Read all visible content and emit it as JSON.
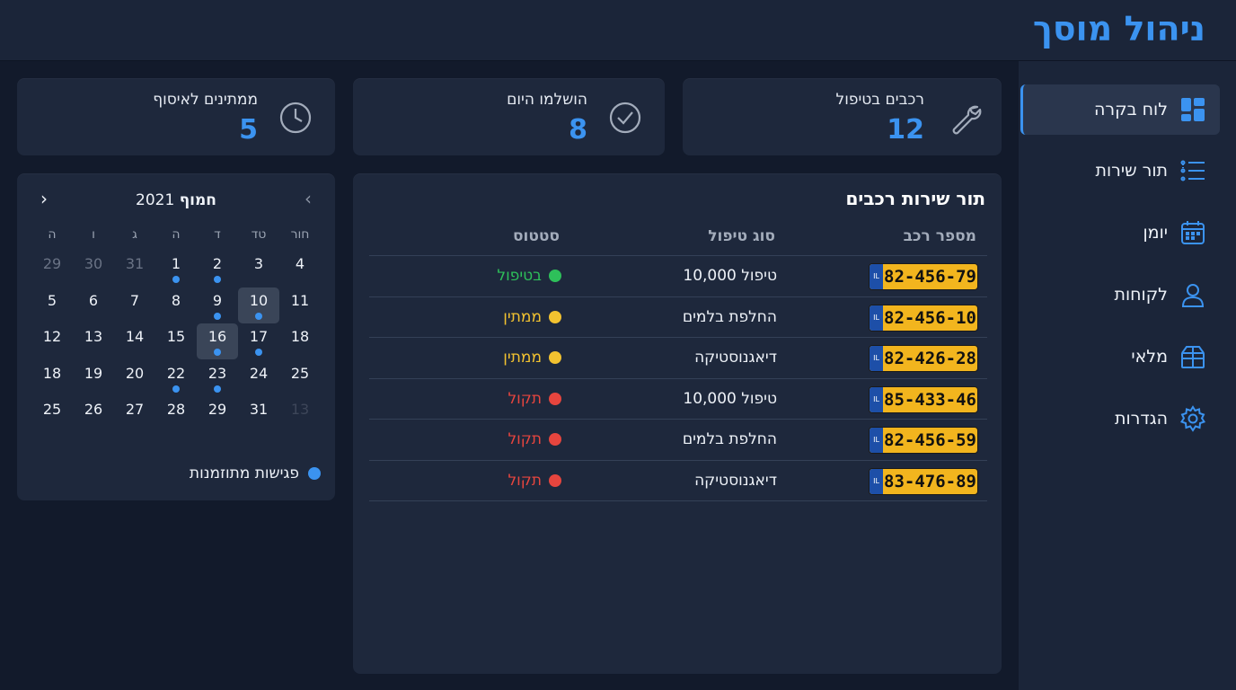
{
  "app": {
    "title": "ניהול מוסך"
  },
  "sidebar": {
    "items": [
      {
        "label": "לוח בקרה",
        "icon": "dashboard-icon",
        "active": true
      },
      {
        "label": "תור שירות",
        "icon": "list-icon",
        "active": false
      },
      {
        "label": "יומן",
        "icon": "calendar-icon",
        "active": false
      },
      {
        "label": "לקוחות",
        "icon": "user-icon",
        "active": false
      },
      {
        "label": "מלאי",
        "icon": "box-icon",
        "active": false
      },
      {
        "label": "הגדרות",
        "icon": "gear-icon",
        "active": false
      }
    ]
  },
  "stats": [
    {
      "label": "רכבים בטיפול",
      "value": "12",
      "icon": "wrench-icon"
    },
    {
      "label": "הושלמו היום",
      "value": "8",
      "icon": "check-circle-icon"
    },
    {
      "label": "ממתינים לאיסוף",
      "value": "5",
      "icon": "clock-icon"
    }
  ],
  "service_queue": {
    "title": "תור שירות רכבים",
    "columns": {
      "plate": "מספר רכב",
      "type": "סוג טיפול",
      "status": "סטטוס"
    },
    "rows": [
      {
        "plate": "82-456-79",
        "type": "טיפול 10,000",
        "status": "בטיפול",
        "status_color": "#2ec05a"
      },
      {
        "plate": "82-456-10",
        "type": "החלפת בלמים",
        "status": "ממתין",
        "status_color": "#f2c230"
      },
      {
        "plate": "82-426-28",
        "type": "דיאגנוסטיקה",
        "status": "ממתין",
        "status_color": "#f2c230"
      },
      {
        "plate": "85-433-46",
        "type": "טיפול 10,000",
        "status": "תקול",
        "status_color": "#e6453e"
      },
      {
        "plate": "82-456-59",
        "type": "החלפת בלמים",
        "status": "תקול",
        "status_color": "#e6453e"
      },
      {
        "plate": "83-476-89",
        "type": "דיאגנוסטיקה",
        "status": "תקול",
        "status_color": "#e6453e"
      }
    ],
    "plate_flag": "IL"
  },
  "calendar": {
    "month": "חמוף",
    "year": "2021",
    "weekdays": [
      "חור",
      "טד",
      "ד",
      "ה",
      "ג",
      "ו",
      "ה"
    ],
    "weeks": [
      [
        {
          "d": "4"
        },
        {
          "d": "3"
        },
        {
          "d": "2",
          "dot": true
        },
        {
          "d": "1",
          "dot": true
        },
        {
          "d": "31",
          "muted": true
        },
        {
          "d": "30",
          "muted": true
        },
        {
          "d": "29",
          "muted": true
        }
      ],
      [
        {
          "d": "11"
        },
        {
          "d": "10",
          "dot": true,
          "hl": true
        },
        {
          "d": "9",
          "dot": true
        },
        {
          "d": "8"
        },
        {
          "d": "7"
        },
        {
          "d": "6"
        },
        {
          "d": "5"
        }
      ],
      [
        {
          "d": "18"
        },
        {
          "d": "17",
          "dot": true
        },
        {
          "d": "16",
          "dot": true,
          "hl": true
        },
        {
          "d": "15"
        },
        {
          "d": "14"
        },
        {
          "d": "13"
        },
        {
          "d": "12"
        }
      ],
      [
        {
          "d": "25"
        },
        {
          "d": "24"
        },
        {
          "d": "23",
          "dot": true
        },
        {
          "d": "22",
          "dot": true
        },
        {
          "d": "20"
        },
        {
          "d": "19"
        },
        {
          "d": "18"
        }
      ],
      [
        {
          "d": "13",
          "faded": true
        },
        {
          "d": "31"
        },
        {
          "d": "29"
        },
        {
          "d": "28"
        },
        {
          "d": "27"
        },
        {
          "d": "26"
        },
        {
          "d": "25"
        }
      ]
    ],
    "legend": "פגישות מתוזמנות",
    "prev_glyph": "‹",
    "next_glyph": "›"
  },
  "colors": {
    "accent": "#3b93f0",
    "header_bg": "#1b2539",
    "card_bg": "#1e283c",
    "page_bg": "#121a2b"
  }
}
